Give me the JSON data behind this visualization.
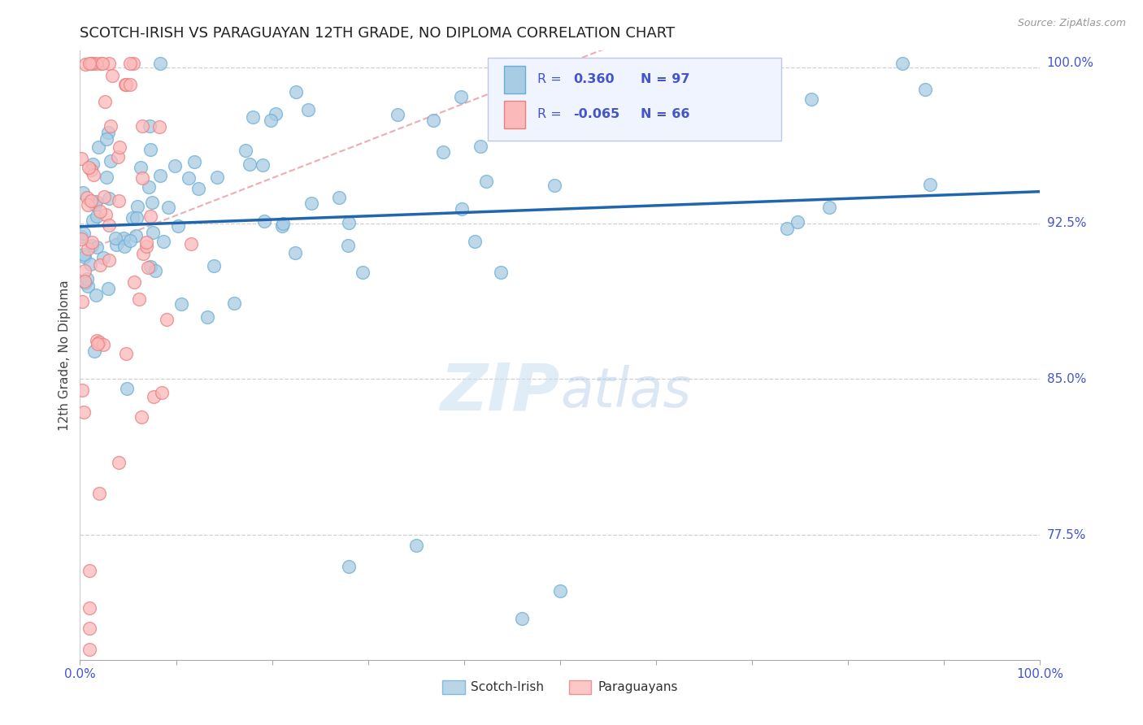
{
  "title": "SCOTCH-IRISH VS PARAGUAYAN 12TH GRADE, NO DIPLOMA CORRELATION CHART",
  "source": "Source: ZipAtlas.com",
  "ylabel_label": "12th Grade, No Diploma",
  "watermark_zip": "ZIP",
  "watermark_atlas": "atlas",
  "xmin": 0.0,
  "xmax": 1.0,
  "ymin": 0.715,
  "ymax": 1.008,
  "xmin_label": "0.0%",
  "xmax_label": "100.0%",
  "right_labels": [
    [
      "100.0%",
      1.002
    ],
    [
      "92.5%",
      0.925
    ],
    [
      "85.0%",
      0.85
    ],
    [
      "77.5%",
      0.775
    ]
  ],
  "blue_color": "#a8cce4",
  "blue_edge_color": "#6aaed6",
  "pink_color": "#fcb9b9",
  "pink_edge_color": "#e88080",
  "blue_line_color": "#2166ac",
  "pink_line_color": "#e8a0a8",
  "grid_color": "#d0d0d0",
  "axis_color": "#4455cc",
  "title_color": "#222222",
  "ylabel_color": "#444444",
  "background_color": "#ffffff",
  "legend_box_color": "#f0f4ff",
  "legend_border_color": "#c0c8e0"
}
